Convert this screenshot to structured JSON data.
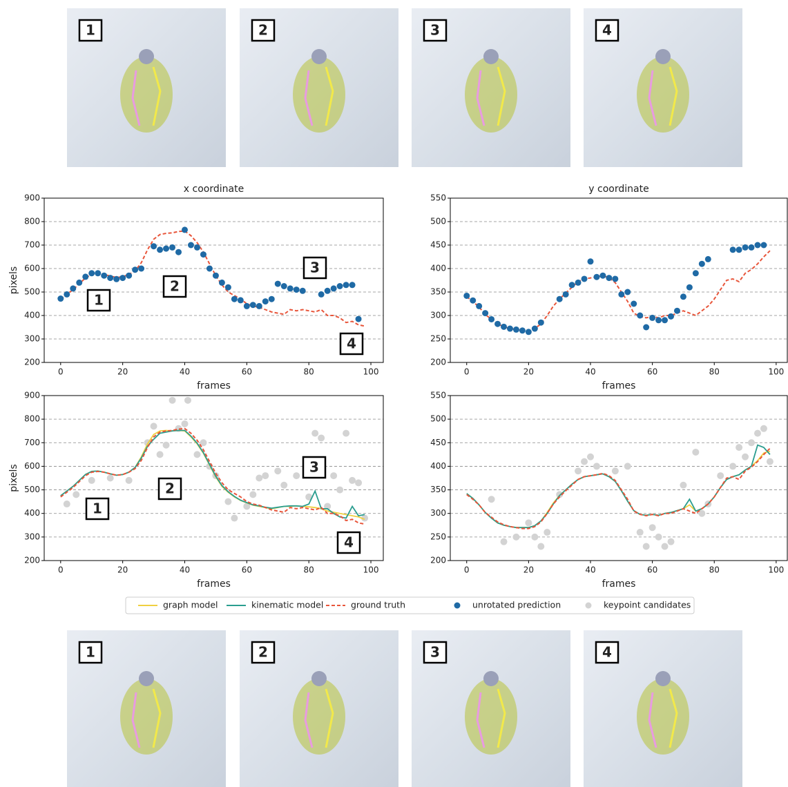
{
  "photos": {
    "top": [
      "1",
      "2",
      "3",
      "4"
    ],
    "bottom": [
      "1",
      "2",
      "3",
      "4"
    ]
  },
  "chart_data": [
    {
      "type": "line",
      "title": "x coordinate",
      "xlabel": "frames",
      "ylabel": "pixels",
      "xlim": [
        -5.3,
        104
      ],
      "ylim": [
        200,
        900
      ],
      "xticks": [
        0,
        20,
        40,
        60,
        80,
        100
      ],
      "yticks": [
        200,
        300,
        400,
        500,
        600,
        700,
        800,
        900
      ],
      "grid": true,
      "annotations": [
        "1",
        "2",
        "3",
        "4"
      ],
      "x": [
        0,
        2,
        4,
        6,
        8,
        10,
        12,
        14,
        16,
        18,
        20,
        22,
        24,
        26,
        28,
        30,
        32,
        34,
        36,
        38,
        40,
        42,
        44,
        46,
        48,
        50,
        52,
        54,
        56,
        58,
        60,
        62,
        64,
        66,
        68,
        70,
        72,
        74,
        76,
        78,
        80,
        82,
        84,
        86,
        88,
        90,
        92,
        94,
        96,
        98
      ],
      "series": [
        {
          "name": "ground truth",
          "kind": "line",
          "dashed": true,
          "color": "#e8553a",
          "values": [
            470,
            490,
            510,
            535,
            560,
            575,
            578,
            575,
            568,
            562,
            565,
            575,
            590,
            625,
            680,
            725,
            745,
            750,
            752,
            758,
            760,
            740,
            710,
            670,
            620,
            570,
            530,
            500,
            485,
            470,
            450,
            440,
            435,
            425,
            415,
            410,
            405,
            425,
            420,
            425,
            420,
            415,
            425,
            400,
            400,
            390,
            370,
            375,
            360,
            355
          ]
        },
        {
          "name": "unrotated prediction",
          "kind": "scatter",
          "color": "#1f6aa5",
          "values": [
            472,
            490,
            515,
            540,
            565,
            580,
            580,
            570,
            560,
            555,
            560,
            570,
            595,
            600,
            null,
            695,
            680,
            685,
            690,
            670,
            765,
            700,
            690,
            660,
            600,
            570,
            540,
            520,
            470,
            465,
            440,
            445,
            440,
            460,
            470,
            535,
            525,
            515,
            510,
            505,
            null,
            null,
            490,
            505,
            515,
            525,
            530,
            530,
            385,
            null
          ]
        }
      ]
    },
    {
      "type": "line",
      "title": "y coordinate",
      "xlabel": "frames",
      "xlim": [
        -5.3,
        103.6
      ],
      "ylim": [
        200,
        550
      ],
      "xticks": [
        0,
        20,
        40,
        60,
        80,
        100
      ],
      "yticks": [
        200,
        250,
        300,
        350,
        400,
        450,
        500,
        550
      ],
      "grid": true,
      "x": [
        0,
        2,
        4,
        6,
        8,
        10,
        12,
        14,
        16,
        18,
        20,
        22,
        24,
        26,
        28,
        30,
        32,
        34,
        36,
        38,
        40,
        42,
        44,
        46,
        48,
        50,
        52,
        54,
        56,
        58,
        60,
        62,
        64,
        66,
        68,
        70,
        72,
        74,
        76,
        78,
        80,
        82,
        84,
        86,
        88,
        90,
        92,
        94,
        96,
        98
      ],
      "series": [
        {
          "name": "ground truth",
          "kind": "line",
          "dashed": true,
          "color": "#e8553a",
          "values": [
            340,
            330,
            318,
            302,
            292,
            282,
            276,
            272,
            270,
            268,
            268,
            272,
            282,
            300,
            320,
            335,
            348,
            360,
            372,
            378,
            380,
            382,
            385,
            380,
            370,
            350,
            330,
            305,
            298,
            295,
            298,
            295,
            300,
            300,
            305,
            310,
            305,
            300,
            310,
            320,
            335,
            355,
            375,
            378,
            372,
            390,
            398,
            410,
            425,
            438
          ]
        },
        {
          "name": "unrotated prediction",
          "kind": "scatter",
          "color": "#1f6aa5",
          "values": [
            342,
            332,
            320,
            305,
            292,
            282,
            276,
            272,
            270,
            268,
            265,
            272,
            285,
            null,
            null,
            335,
            345,
            365,
            370,
            378,
            415,
            382,
            385,
            380,
            378,
            345,
            350,
            325,
            300,
            275,
            295,
            290,
            290,
            298,
            310,
            340,
            360,
            390,
            410,
            420,
            null,
            null,
            null,
            440,
            440,
            445,
            445,
            450,
            450,
            null
          ]
        }
      ]
    },
    {
      "type": "line",
      "xlabel": "frames",
      "ylabel": "pixels",
      "xlim": [
        -5.3,
        104
      ],
      "ylim": [
        200,
        900
      ],
      "xticks": [
        0,
        20,
        40,
        60,
        80,
        100
      ],
      "yticks": [
        200,
        300,
        400,
        500,
        600,
        700,
        800,
        900
      ],
      "grid": true,
      "annotations": [
        "1",
        "2",
        "3",
        "4"
      ],
      "x": [
        0,
        2,
        4,
        6,
        8,
        10,
        12,
        14,
        16,
        18,
        20,
        22,
        24,
        26,
        28,
        30,
        32,
        34,
        36,
        38,
        40,
        42,
        44,
        46,
        48,
        50,
        52,
        54,
        56,
        58,
        60,
        62,
        64,
        66,
        68,
        70,
        72,
        74,
        76,
        78,
        80,
        82,
        84,
        86,
        88,
        90,
        92,
        94,
        96,
        98
      ],
      "series": [
        {
          "name": "keypoint candidates",
          "kind": "scatter",
          "color": "#d3d3d3",
          "x": [
            2,
            5,
            10,
            16,
            22,
            28,
            30,
            32,
            34,
            36,
            38,
            40,
            41,
            44,
            46,
            48,
            50,
            54,
            56,
            60,
            62,
            64,
            66,
            70,
            72,
            76,
            80,
            82,
            84,
            86,
            88,
            90,
            92,
            94,
            96,
            98
          ],
          "values": [
            440,
            480,
            540,
            550,
            540,
            700,
            770,
            650,
            690,
            880,
            760,
            780,
            880,
            650,
            700,
            600,
            560,
            450,
            380,
            430,
            480,
            550,
            560,
            580,
            520,
            560,
            470,
            740,
            720,
            430,
            560,
            500,
            740,
            540,
            530,
            380
          ]
        },
        {
          "name": "graph model",
          "kind": "line",
          "color": "#f0d040",
          "values": [
            475,
            495,
            515,
            540,
            565,
            578,
            580,
            575,
            568,
            562,
            565,
            575,
            595,
            640,
            695,
            735,
            750,
            752,
            750,
            752,
            750,
            725,
            695,
            655,
            605,
            555,
            515,
            490,
            470,
            455,
            445,
            435,
            430,
            425,
            420,
            425,
            430,
            430,
            432,
            430,
            428,
            425,
            420,
            410,
            405,
            400,
            395,
            390,
            385,
            375
          ]
        },
        {
          "name": "kinematic model",
          "kind": "line",
          "color": "#2a9d8f",
          "values": [
            475,
            495,
            515,
            540,
            565,
            578,
            580,
            575,
            568,
            562,
            565,
            575,
            595,
            635,
            685,
            715,
            740,
            745,
            750,
            752,
            752,
            728,
            698,
            658,
            608,
            558,
            518,
            492,
            472,
            456,
            446,
            436,
            432,
            426,
            422,
            426,
            430,
            432,
            432,
            430,
            440,
            495,
            420,
            420,
            400,
            385,
            380,
            430,
            390,
            395
          ]
        },
        {
          "name": "ground truth",
          "kind": "line",
          "dashed": true,
          "color": "#e8553a",
          "values": [
            470,
            490,
            510,
            535,
            560,
            575,
            578,
            575,
            568,
            562,
            565,
            575,
            590,
            625,
            680,
            725,
            745,
            750,
            752,
            758,
            760,
            740,
            710,
            670,
            620,
            570,
            530,
            500,
            485,
            470,
            450,
            440,
            435,
            425,
            415,
            410,
            405,
            425,
            420,
            425,
            420,
            415,
            425,
            400,
            400,
            390,
            370,
            375,
            360,
            355
          ]
        }
      ]
    },
    {
      "type": "line",
      "xlabel": "frames",
      "xlim": [
        -5.3,
        103.6
      ],
      "ylim": [
        200,
        550
      ],
      "xticks": [
        0,
        20,
        40,
        60,
        80,
        100
      ],
      "yticks": [
        200,
        250,
        300,
        350,
        400,
        450,
        500,
        550
      ],
      "grid": true,
      "x": [
        0,
        2,
        4,
        6,
        8,
        10,
        12,
        14,
        16,
        18,
        20,
        22,
        24,
        26,
        28,
        30,
        32,
        34,
        36,
        38,
        40,
        42,
        44,
        46,
        48,
        50,
        52,
        54,
        56,
        58,
        60,
        62,
        64,
        66,
        68,
        70,
        72,
        74,
        76,
        78,
        80,
        82,
        84,
        86,
        88,
        90,
        92,
        94,
        96,
        98
      ],
      "series": [
        {
          "name": "keypoint candidates",
          "kind": "scatter",
          "color": "#d3d3d3",
          "x": [
            8,
            12,
            16,
            20,
            22,
            24,
            26,
            30,
            36,
            38,
            40,
            42,
            48,
            52,
            56,
            58,
            60,
            62,
            64,
            66,
            70,
            74,
            76,
            78,
            82,
            86,
            88,
            90,
            92,
            94,
            96,
            98
          ],
          "values": [
            330,
            240,
            250,
            280,
            250,
            230,
            260,
            340,
            390,
            410,
            420,
            400,
            390,
            400,
            260,
            230,
            270,
            250,
            230,
            240,
            360,
            430,
            300,
            320,
            380,
            400,
            440,
            420,
            450,
            470,
            480,
            410
          ]
        },
        {
          "name": "graph model",
          "kind": "line",
          "color": "#f0d040",
          "values": [
            342,
            332,
            318,
            302,
            290,
            280,
            275,
            272,
            270,
            270,
            270,
            274,
            284,
            302,
            322,
            338,
            350,
            362,
            372,
            378,
            380,
            382,
            384,
            378,
            368,
            348,
            326,
            306,
            298,
            296,
            298,
            296,
            300,
            302,
            306,
            310,
            318,
            305,
            310,
            320,
            335,
            355,
            372,
            378,
            382,
            392,
            400,
            412,
            428,
            432
          ]
        },
        {
          "name": "kinematic model",
          "kind": "line",
          "color": "#2a9d8f",
          "values": [
            342,
            332,
            318,
            302,
            290,
            280,
            275,
            272,
            270,
            270,
            270,
            274,
            284,
            300,
            320,
            338,
            350,
            362,
            372,
            378,
            380,
            382,
            384,
            378,
            368,
            348,
            326,
            306,
            298,
            296,
            298,
            296,
            300,
            302,
            306,
            310,
            330,
            305,
            310,
            320,
            335,
            355,
            372,
            378,
            382,
            392,
            400,
            445,
            440,
            425
          ]
        },
        {
          "name": "ground truth",
          "kind": "line",
          "dashed": true,
          "color": "#e8553a",
          "values": [
            340,
            330,
            318,
            302,
            292,
            282,
            276,
            272,
            270,
            268,
            268,
            272,
            282,
            300,
            320,
            335,
            348,
            360,
            372,
            378,
            380,
            382,
            385,
            380,
            370,
            350,
            330,
            305,
            298,
            295,
            298,
            295,
            300,
            300,
            305,
            310,
            305,
            300,
            310,
            320,
            335,
            355,
            375,
            378,
            372,
            390,
            398,
            410,
            425,
            438
          ]
        }
      ]
    }
  ]
}
